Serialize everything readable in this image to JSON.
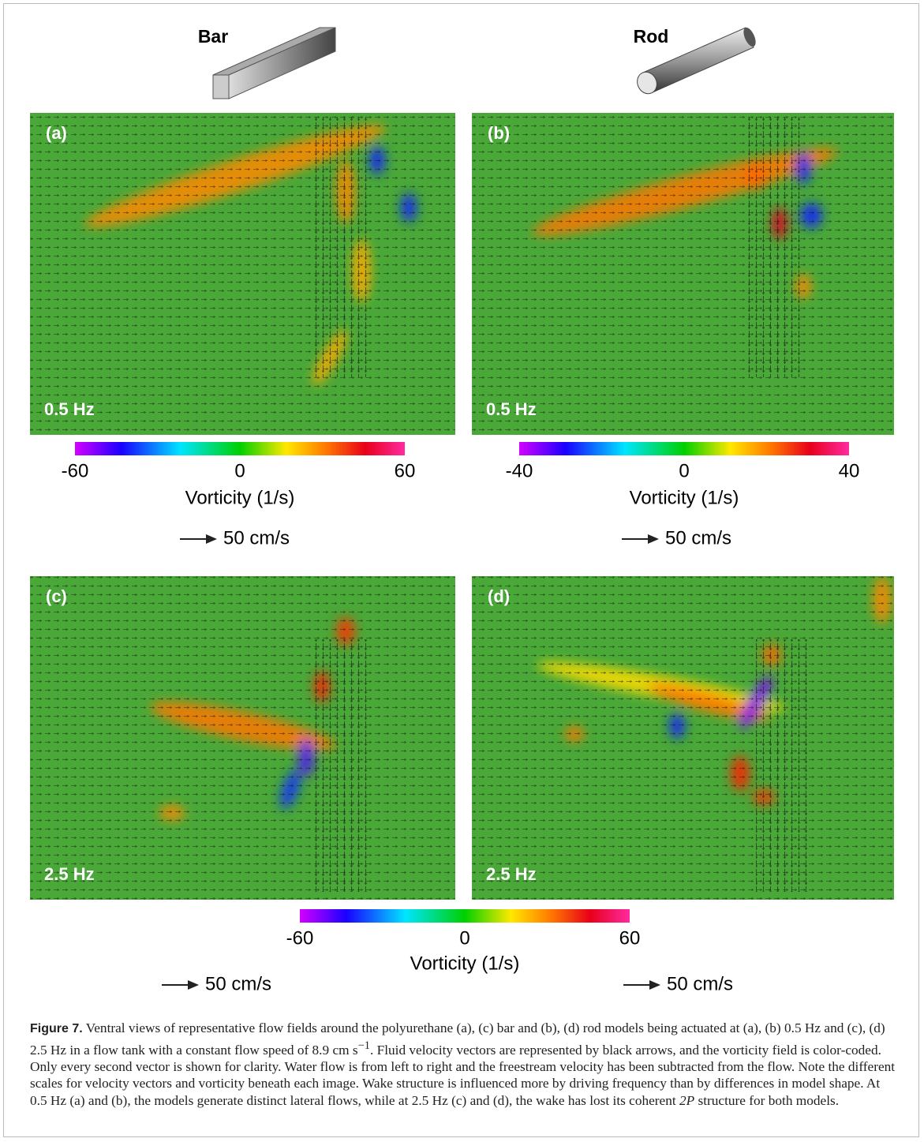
{
  "columns": [
    {
      "title": "Bar"
    },
    {
      "title": "Rod"
    }
  ],
  "panels": [
    {
      "label": "(a)",
      "frequency": "0.5 Hz"
    },
    {
      "label": "(b)",
      "frequency": "0.5 Hz"
    },
    {
      "label": "(c)",
      "frequency": "2.5 Hz"
    },
    {
      "label": "(d)",
      "frequency": "2.5 Hz"
    }
  ],
  "colorbars": [
    {
      "ticks": [
        "-60",
        "0",
        "60"
      ],
      "label": "Vorticity (1/s)",
      "vector_scale": "50 cm/s"
    },
    {
      "ticks": [
        "-40",
        "0",
        "40"
      ],
      "label": "Vorticity (1/s)",
      "vector_scale": "50 cm/s"
    },
    {
      "ticks": [
        "-60",
        "0",
        "60"
      ],
      "label": "Vorticity (1/s)",
      "vector_scale_left": "50 cm/s",
      "vector_scale_right": "50 cm/s"
    }
  ],
  "caption": {
    "label": "Figure 7.",
    "text_1": " Ventral views of representative flow fields around the polyurethane (a), (c) bar and (b), (d) rod models being actuated at (a), (b) 0.5 Hz and (c), (d) 2.5 Hz in a flow tank with a constant flow speed of 8.9 cm s",
    "superscript": "−1",
    "text_2": ". Fluid velocity vectors are represented by black arrows, and the vorticity field is color-coded. Only every second vector is shown for clarity. Water flow is from left to right and the freestream velocity has been subtracted from the flow. Note the different scales for velocity vectors and vorticity beneath each image. Wake structure is influenced more by driving frequency than by differences in model shape. At 0.5 Hz (a) and (b), the models generate distinct lateral flows, while at 2.5 Hz (c) and (d), the wake has lost its coherent ",
    "italic": "2P",
    "text_3": " structure for both models."
  }
}
